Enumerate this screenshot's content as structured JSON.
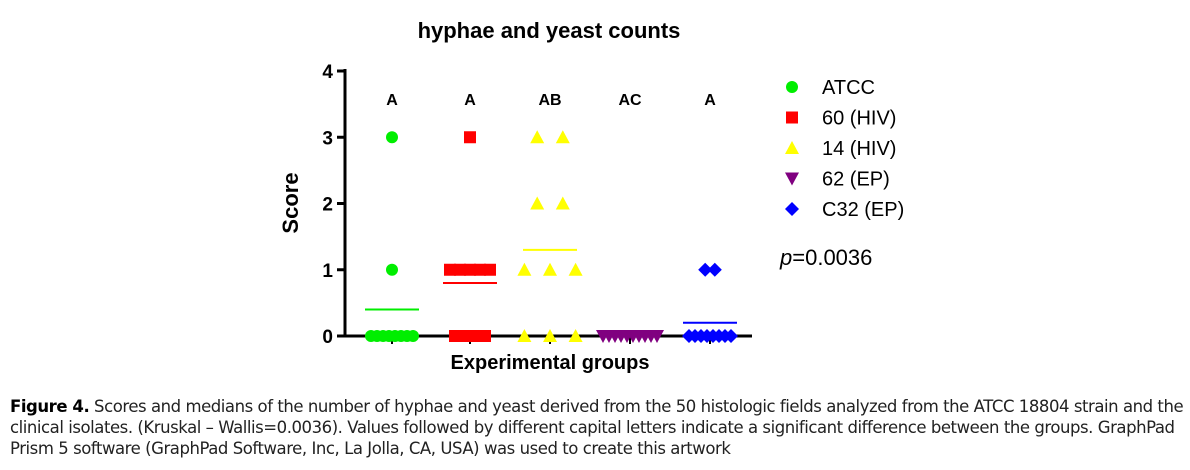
{
  "chart_data": {
    "type": "scatter",
    "title": "hyphae and yeast counts",
    "xlabel": "Experimental groups",
    "ylabel": "Score",
    "ylim": [
      0,
      4
    ],
    "yticks": [
      "0",
      "1",
      "2",
      "3",
      "4"
    ],
    "grid": false,
    "legend_placement": "right",
    "series": [
      {
        "name": "ATCC",
        "color": "#00ee00",
        "marker": "circle",
        "letter": "A",
        "values": [
          3,
          1,
          0,
          0,
          0,
          0,
          0,
          0,
          0,
          0
        ],
        "mean": 0.4
      },
      {
        "name": "60 (HIV)",
        "color": "#ff0000",
        "marker": "square",
        "letter": "A",
        "values": [
          3,
          1,
          1,
          1,
          1,
          1,
          0,
          0,
          0,
          0
        ],
        "mean": 0.8
      },
      {
        "name": "14 (HIV)",
        "color": "#ffff00",
        "marker": "triangle-up",
        "letter": "AB",
        "values": [
          3,
          3,
          2,
          2,
          1,
          1,
          1,
          0,
          0,
          0
        ],
        "mean": 1.3
      },
      {
        "name": "62 (EP)",
        "color": "#800080",
        "marker": "triangle-down",
        "letter": "AC",
        "values": [
          0,
          0,
          0,
          0,
          0,
          0,
          0,
          0,
          0,
          0
        ],
        "mean": 0
      },
      {
        "name": "C32 (EP)",
        "color": "#0000ff",
        "marker": "diamond",
        "letter": "A",
        "values": [
          1,
          1,
          0,
          0,
          0,
          0,
          0,
          0,
          0,
          0
        ],
        "mean": 0.2
      }
    ],
    "annotation": {
      "prefix": "p",
      "text": "=0.0036"
    }
  },
  "caption": {
    "label": "Figure 4.",
    "text": " Scores and medians of the number of hyphae and yeast derived from the 50 histologic fields analyzed from the ATCC 18804 strain and the clinical isolates. (Kruskal – Wallis=0.0036). Values followed by different capital letters indicate a significant difference between the groups. GraphPad Prism 5 software (GraphPad Software, Inc, La Jolla, CA, USA) was used to create this artwork"
  }
}
